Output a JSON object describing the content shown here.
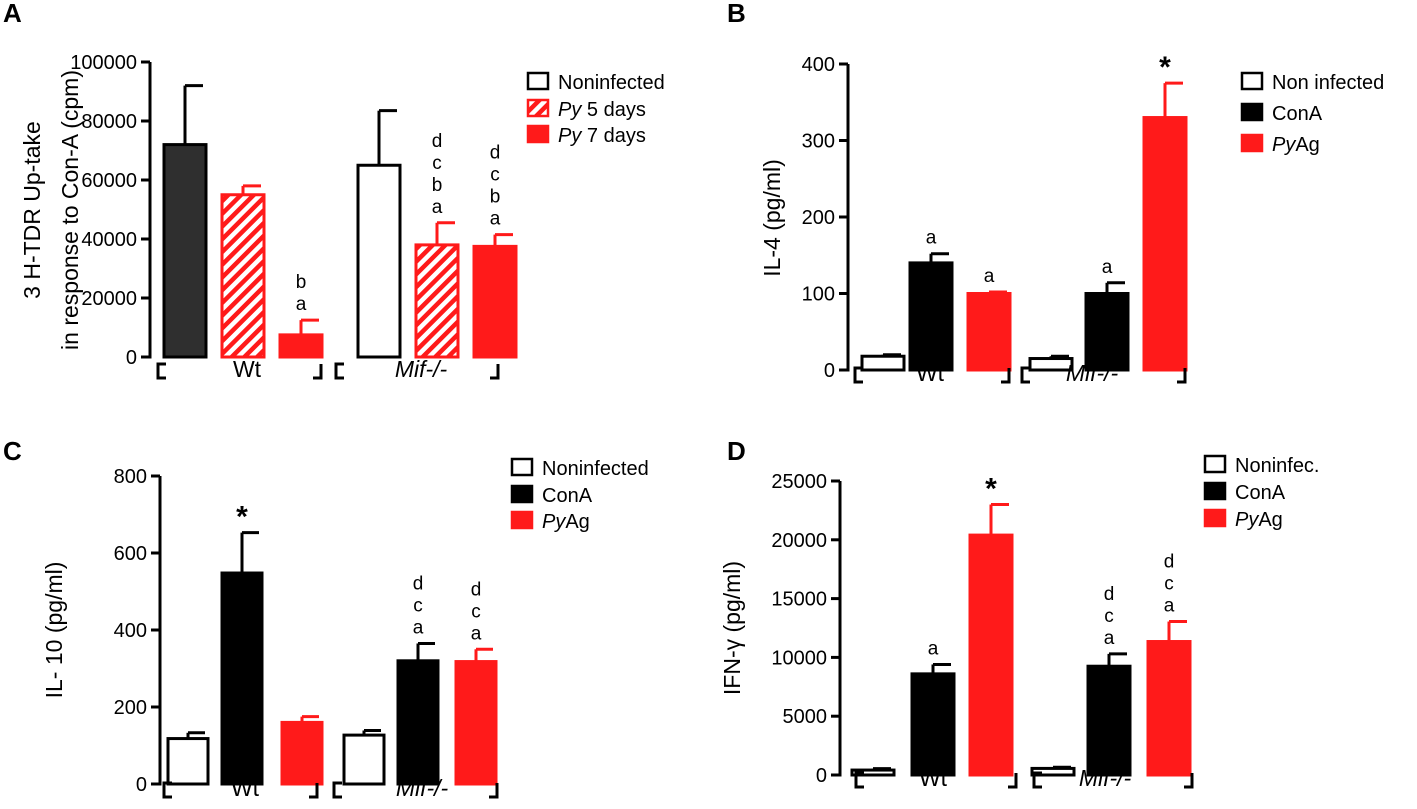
{
  "chart_data": [
    {
      "panel": "A",
      "type": "bar",
      "ylabel_line1": "3 H-TDR Up-take",
      "ylabel_line2": "in response to Con-A (cpm)",
      "ylim": [
        0,
        100000
      ],
      "yticks": [
        "0",
        "20000",
        "40000",
        "60000",
        "80000",
        "100000"
      ],
      "groups": [
        "Wt",
        "Mif-/-"
      ],
      "legend": [
        {
          "label": "Noninfected",
          "italic_prefix": ""
        },
        {
          "label": " 5 days",
          "italic_prefix": "Py"
        },
        {
          "label": " 7 days",
          "italic_prefix": "Py"
        }
      ],
      "bars": [
        {
          "value": 72000,
          "err": 20000,
          "style": "dark",
          "sig": []
        },
        {
          "value": 55000,
          "err": 3000,
          "style": "hatch",
          "sig": []
        },
        {
          "value": 7500,
          "err": 5000,
          "style": "red",
          "sig": [
            "b",
            "a"
          ]
        },
        {
          "value": 65000,
          "err": 18500,
          "style": "white",
          "sig": []
        },
        {
          "value": 38000,
          "err": 7500,
          "style": "hatch",
          "sig": [
            "d",
            "c",
            "b",
            "a"
          ]
        },
        {
          "value": 37500,
          "err": 4000,
          "style": "red",
          "sig": [
            "d",
            "c",
            "b",
            "a"
          ]
        }
      ]
    },
    {
      "panel": "B",
      "type": "bar",
      "ylabel_line1": "IL-4 (pg/ml)",
      "ylabel_line2": "",
      "ylim": [
        0,
        400
      ],
      "yticks": [
        "0",
        "100",
        "200",
        "300",
        "400"
      ],
      "groups": [
        "Wt",
        "Mif-/-"
      ],
      "legend": [
        {
          "label": "Non infected",
          "italic_prefix": ""
        },
        {
          "label": "ConA",
          "italic_prefix": ""
        },
        {
          "label": "Ag",
          "italic_prefix": "Py"
        }
      ],
      "bars": [
        {
          "value": 18,
          "err": 2,
          "style": "white",
          "sig": []
        },
        {
          "value": 140,
          "err": 12,
          "style": "black",
          "sig": [
            "a"
          ]
        },
        {
          "value": 100,
          "err": 2,
          "style": "red",
          "sig": [
            "a"
          ]
        },
        {
          "value": 15,
          "err": 3,
          "style": "white",
          "sig": []
        },
        {
          "value": 100,
          "err": 14,
          "style": "black",
          "sig": [
            "a"
          ]
        },
        {
          "value": 330,
          "err": 45,
          "style": "red",
          "sig": [
            "*"
          ]
        }
      ]
    },
    {
      "panel": "C",
      "type": "bar",
      "ylabel_line1": "IL- 10 (pg/ml)",
      "ylabel_line2": "",
      "ylim": [
        0,
        800
      ],
      "yticks": [
        "0",
        "200",
        "400",
        "600",
        "800"
      ],
      "groups": [
        "Wt",
        "Mif-/-"
      ],
      "legend": [
        {
          "label": "Noninfected",
          "italic_prefix": ""
        },
        {
          "label": "ConA",
          "italic_prefix": ""
        },
        {
          "label": "Ag",
          "italic_prefix": "Py"
        }
      ],
      "bars": [
        {
          "value": 118,
          "err": 15,
          "style": "white",
          "sig": []
        },
        {
          "value": 548,
          "err": 105,
          "style": "black",
          "sig": [
            "*"
          ]
        },
        {
          "value": 160,
          "err": 15,
          "style": "red",
          "sig": []
        },
        {
          "value": 127,
          "err": 12,
          "style": "white",
          "sig": []
        },
        {
          "value": 320,
          "err": 45,
          "style": "black",
          "sig": [
            "d",
            "c",
            "a"
          ]
        },
        {
          "value": 318,
          "err": 32,
          "style": "red",
          "sig": [
            "d",
            "c",
            "a"
          ]
        }
      ]
    },
    {
      "panel": "D",
      "type": "bar",
      "ylabel_line1": "IFN-γ (pg/ml)",
      "ylabel_line2": "",
      "ylim": [
        0,
        25000
      ],
      "yticks": [
        "0",
        "5000",
        "10000",
        "15000",
        "20000",
        "25000"
      ],
      "groups": [
        "Wt",
        "Mif-/-"
      ],
      "legend": [
        {
          "label": "Noninfec.",
          "italic_prefix": ""
        },
        {
          "label": "ConA",
          "italic_prefix": ""
        },
        {
          "label": "Ag",
          "italic_prefix": "Py"
        }
      ],
      "bars": [
        {
          "value": 420,
          "err": 120,
          "style": "white",
          "sig": []
        },
        {
          "value": 8600,
          "err": 800,
          "style": "black",
          "sig": [
            "a"
          ]
        },
        {
          "value": 20400,
          "err": 2600,
          "style": "red",
          "sig": [
            "*"
          ]
        },
        {
          "value": 560,
          "err": 100,
          "style": "white",
          "sig": []
        },
        {
          "value": 9250,
          "err": 1050,
          "style": "black",
          "sig": [
            "d",
            "c",
            "a"
          ]
        },
        {
          "value": 11350,
          "err": 1700,
          "style": "red",
          "sig": [
            "d",
            "c",
            "a"
          ]
        }
      ]
    }
  ]
}
